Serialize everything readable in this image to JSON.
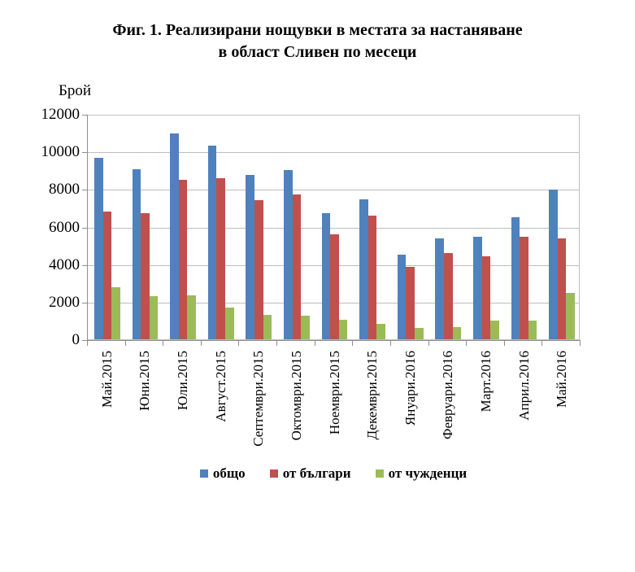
{
  "figure": {
    "title_line1": "Фиг. 1. Реализирани нощувки в местата за настаняване",
    "title_line2": "в област Сливен по месеци"
  },
  "chart_data": {
    "type": "bar",
    "title": "Фиг. 1. Реализирани нощувки в местата за настаняване в област Сливен по месеци",
    "xlabel": "",
    "ylabel": "Брой",
    "ylim": [
      0,
      12000
    ],
    "yticks": [
      0,
      2000,
      4000,
      6000,
      8000,
      10000,
      12000
    ],
    "grid": true,
    "legend_position": "bottom",
    "categories": [
      "Май.2015",
      "Юни.2015",
      "Юли.2015",
      "Август.2015",
      "Септември.2015",
      "Октомври.2015",
      "Ноември.2015",
      "Декември.2015",
      "Януари.2016",
      "Февруари.2016",
      "Март.2016",
      "Април.2016",
      "Май.2016"
    ],
    "series": [
      {
        "name": "общо",
        "color": "#4F81BD",
        "values": [
          9700,
          9100,
          11000,
          10350,
          8800,
          9050,
          6750,
          7500,
          4550,
          5400,
          5500,
          6550,
          8000
        ]
      },
      {
        "name": "от българи",
        "color": "#C0504D",
        "values": [
          6850,
          6750,
          8550,
          8600,
          7450,
          7750,
          5650,
          6650,
          3900,
          4650,
          4450,
          5500,
          5400
        ]
      },
      {
        "name": "от чужденци",
        "color": "#9BBB59",
        "values": [
          2800,
          2350,
          2400,
          1750,
          1350,
          1300,
          1100,
          850,
          650,
          700,
          1050,
          1050,
          2500
        ]
      }
    ]
  },
  "style": {
    "background": "#FFFFFF",
    "gridline_color": "#BDBDBD",
    "axis_color": "#8E8E8E",
    "text_color": "#000000"
  }
}
